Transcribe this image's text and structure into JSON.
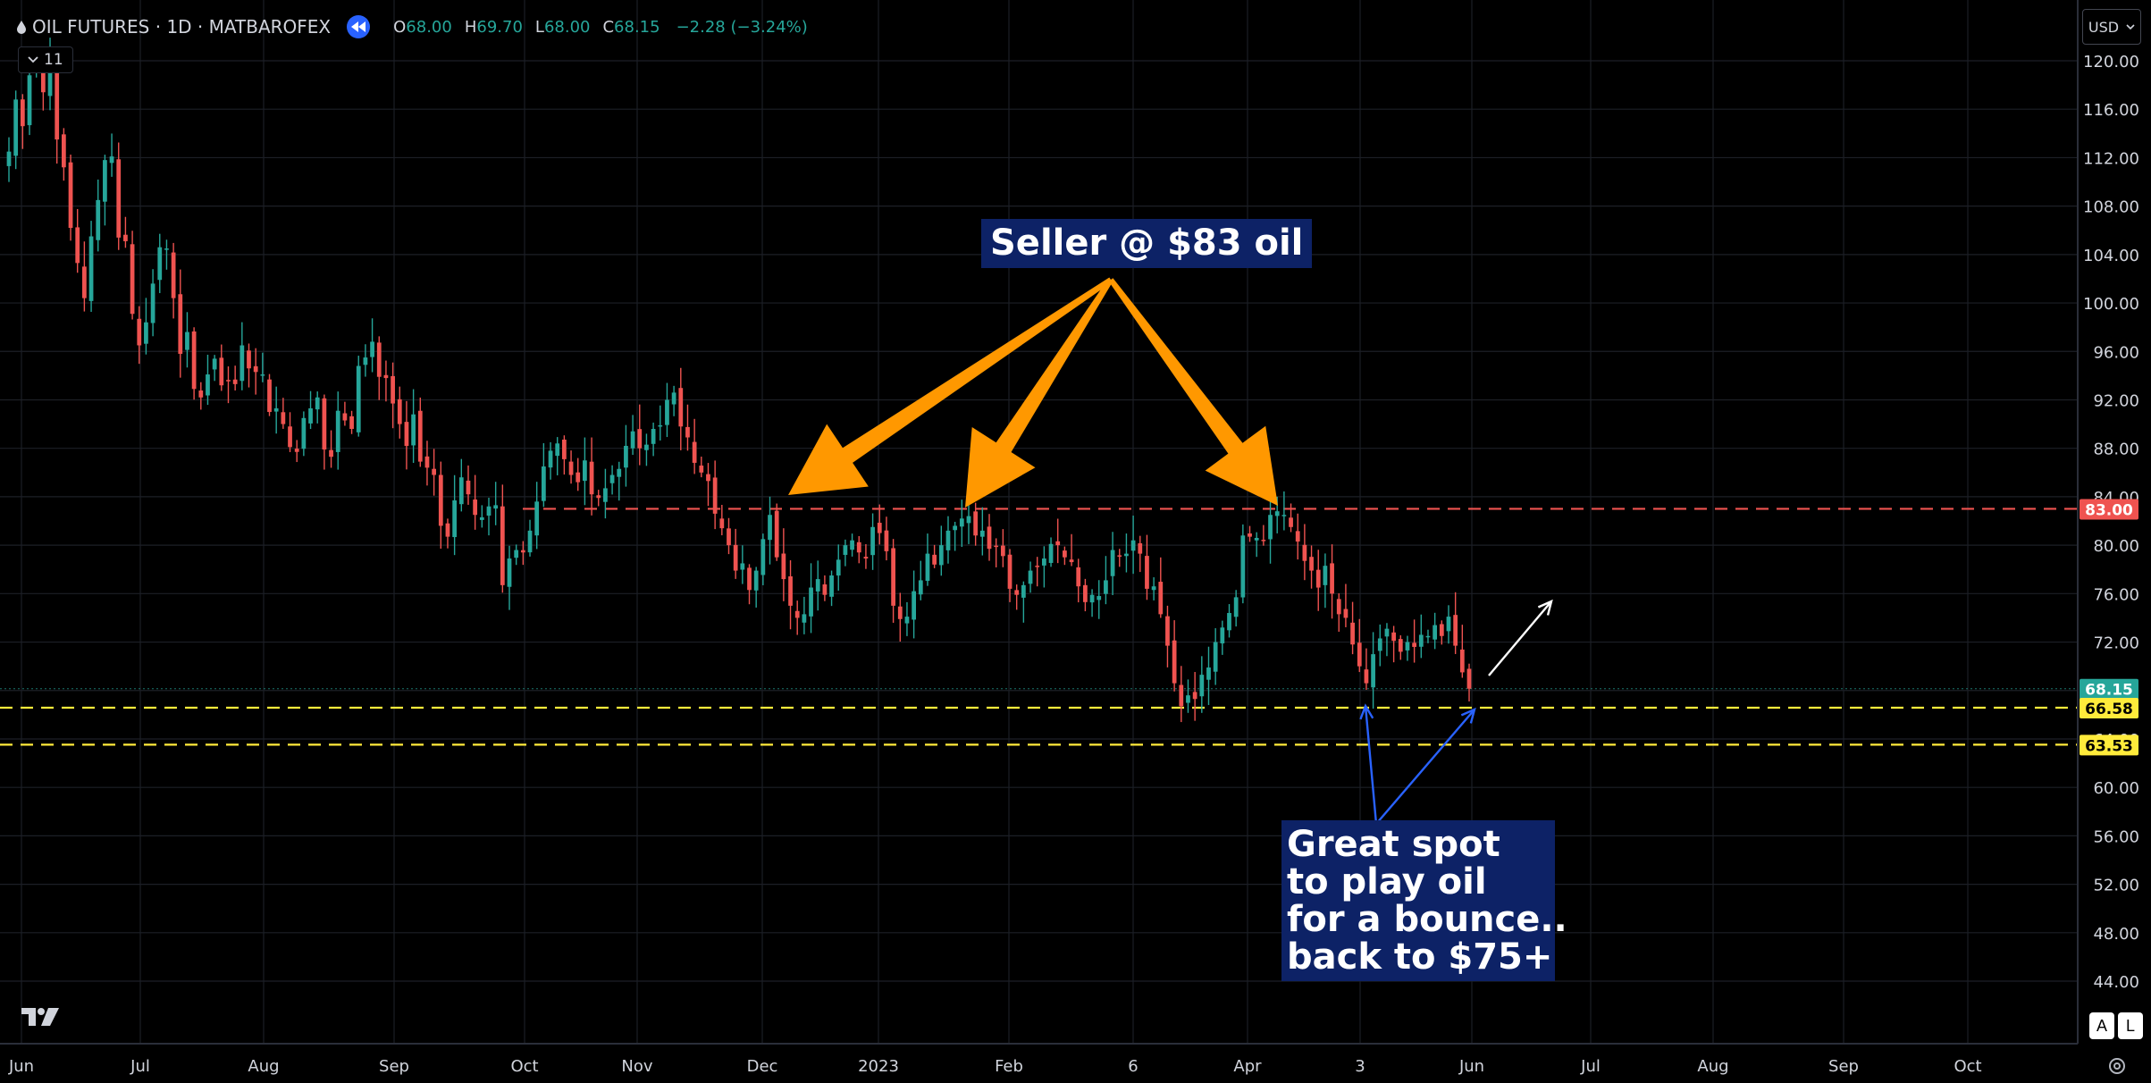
{
  "header": {
    "symbol": "OIL FUTURES · 1D · MATBAROFEX",
    "open_label": "O",
    "open": "68.00",
    "high_label": "H",
    "high": "69.70",
    "low_label": "L",
    "low": "68.00",
    "close_label": "C",
    "close": "68.15",
    "change": "−2.28 (−3.24%)",
    "collapse_count": "11",
    "currency": "USD"
  },
  "icons": {
    "symbol_icon": "oil-drop-icon",
    "replay": "replay-icon",
    "collapse": "chevron-down-icon",
    "currency": "chevron-down-icon",
    "logo": "tradingview-logo",
    "settings": "gear-icon"
  },
  "colors": {
    "background": "#000000",
    "up": "#26a69a",
    "down": "#ef5350",
    "resistance": "#ef5350",
    "support": "#ffeb3b",
    "last_price": "#26a69a",
    "orange_arrow": "#ff9800",
    "blue_arrow": "#2962ff",
    "annotation_bg": "#0d2266"
  },
  "annotations": {
    "seller": "Seller @ $83 oil",
    "bounce_lines": [
      "Great spot",
      "to play oil",
      "for a bounce..",
      "back to $75+"
    ]
  },
  "buttons": {
    "auto": "A",
    "log": "L"
  },
  "chart_data": {
    "type": "candlestick",
    "xlabels": [
      "Jun",
      "Jul",
      "Aug",
      "Sep",
      "Oct",
      "Nov",
      "Dec",
      "2023",
      "Feb",
      "6",
      "Apr",
      "3",
      "Jun",
      "Jul",
      "Aug",
      "Sep",
      "Oct"
    ],
    "y_ticks": [
      44,
      48,
      52,
      56,
      60,
      64,
      68,
      72,
      76,
      80,
      84,
      88,
      92,
      96,
      100,
      104,
      108,
      112,
      116,
      120
    ],
    "ylim": [
      41.5,
      121.5
    ],
    "price_labels": [
      {
        "value": "83.00",
        "color": "#ef5350"
      },
      {
        "value": "68.15",
        "color": "#26a69a"
      },
      {
        "value": "66.58",
        "color": "#ffeb3b"
      },
      {
        "value": "63.53",
        "color": "#ffeb3b"
      }
    ],
    "resistance": 83.0,
    "supports": [
      66.58,
      63.53
    ],
    "last_price": 68.15,
    "closes": [
      112.5,
      116.8,
      114.6,
      118.8,
      119.6,
      117.4,
      120.6,
      113.5,
      111.2,
      106.2,
      103.3,
      100.4,
      105.5,
      108.5,
      111.8,
      112.1,
      105.4,
      105.1,
      99.1,
      96.5,
      98.4,
      101.6,
      104.6,
      104.5,
      100.4,
      95.8,
      97.6,
      92.9,
      92.2,
      94.1,
      95.4,
      93.2,
      93.6,
      93.3,
      96.5,
      94.6,
      94.3,
      94.1,
      91.0,
      91.3,
      90.0,
      88.1,
      87.7,
      90.5,
      91.3,
      92.2,
      87.9,
      87.3,
      91.1,
      90.3,
      89.6,
      94.8,
      95.5,
      96.8,
      93.9,
      93.8,
      91.7,
      90.0,
      88.2,
      90.8,
      86.9,
      86.4,
      85.8,
      81.6,
      80.7,
      83.7,
      85.6,
      84.2,
      82.5,
      82.3,
      83.2,
      83.3,
      76.7,
      78.9,
      79.6,
      79.4,
      81.2,
      83.6,
      86.5,
      87.8,
      88.4,
      87.1,
      85.8,
      85.2,
      87.0,
      84.2,
      83.9,
      84.7,
      85.8,
      86.3,
      88.2,
      89.4,
      88.0,
      88.3,
      89.6,
      89.9,
      92.0,
      92.6,
      89.8,
      88.9,
      86.8,
      86.0,
      85.3,
      82.6,
      81.4,
      80.0,
      77.9,
      78.5,
      76.3,
      77.9,
      80.5,
      82.5,
      79.0,
      77.2,
      75.0,
      74.0,
      74.3,
      76.5,
      77.2,
      75.9,
      77.5,
      78.8,
      80.0,
      80.4,
      79.4,
      78.9,
      81.5,
      81.0,
      79.5,
      75.0,
      73.9,
      74.1,
      76.2,
      77.1,
      79.3,
      78.4,
      80.0,
      81.2,
      81.6,
      82.2,
      82.4,
      80.8,
      81.2,
      79.7,
      79.9,
      79.1,
      76.4,
      75.9,
      76.7,
      77.9,
      78.2,
      78.9,
      80.1,
      80.0,
      79.0,
      78.6,
      76.6,
      75.3,
      75.9,
      75.8,
      77.1,
      79.6,
      79.1,
      79.3,
      80.4,
      79.3,
      76.4,
      76.6,
      74.3,
      71.7,
      68.6,
      66.7,
      67.6,
      67.3,
      69.3,
      69.9,
      72.0,
      73.2,
      74.4,
      75.7,
      80.8,
      80.7,
      80.6,
      80.4,
      82.5,
      82.8,
      82.5,
      81.5,
      80.3,
      78.7,
      77.9,
      76.5,
      78.3,
      76.0,
      74.3,
      74.0,
      71.8,
      70.0,
      68.6,
      71.0,
      72.3,
      73.1,
      72.1,
      71.2,
      72.0,
      71.6,
      72.6,
      72.5,
      73.4,
      72.5,
      74.1,
      71.7,
      69.5,
      68.15
    ]
  }
}
